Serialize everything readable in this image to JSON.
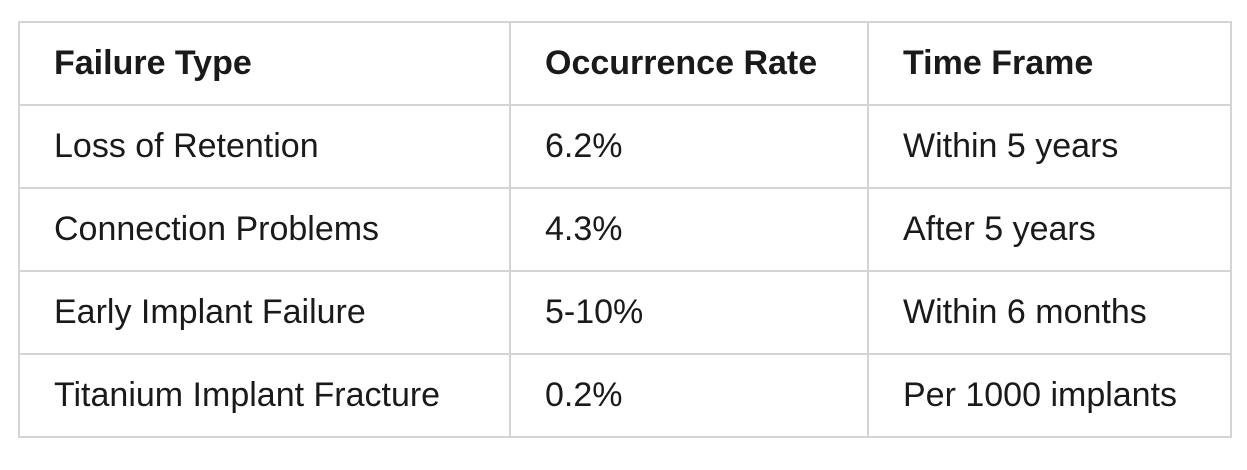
{
  "table": {
    "header": [
      "Failure Type",
      "Occurrence Rate",
      "Time Frame"
    ],
    "rows": [
      [
        "Loss of Retention",
        "6.2%",
        "Within 5 years"
      ],
      [
        "Connection Problems",
        "4.3%",
        "After 5 years"
      ],
      [
        "Early Implant Failure",
        "5-10%",
        "Within 6 months"
      ],
      [
        "Titanium Implant Fracture",
        "0.2%",
        "Per 1000 implants"
      ]
    ]
  }
}
